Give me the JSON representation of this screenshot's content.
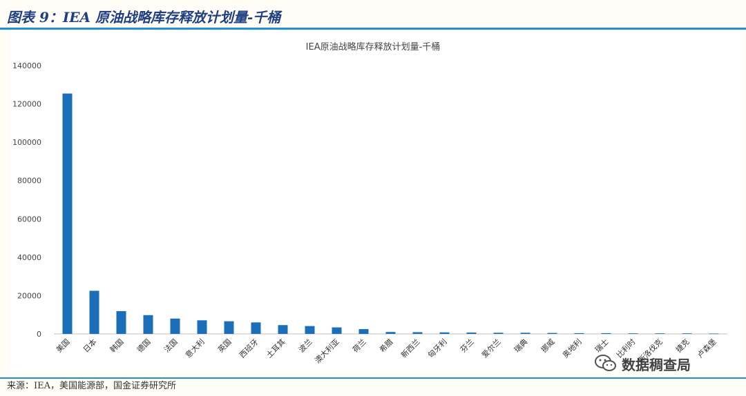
{
  "figure_title": "图表 9：IEA 原油战略库存释放计划量-千桶",
  "source_text": "来源：IEA，美国能源部，国金证券研究所",
  "watermark_text": "数据稠查局",
  "colors": {
    "bar": "#1a6fb8",
    "rule": "#1f8fcf",
    "title": "#1f3f82",
    "background": "#fffdf6"
  },
  "icons": {
    "watermark": "wechat-icon"
  },
  "chart_data": {
    "type": "bar",
    "title": "IEA原油战略库存释放计划量-千桶",
    "xlabel": "",
    "ylabel": "",
    "ylim": [
      0,
      140000
    ],
    "yticks": [
      "0",
      "20000",
      "40000",
      "60000",
      "80000",
      "100000",
      "120000",
      "140000"
    ],
    "grid": false,
    "legend": "none",
    "categories": [
      "美国",
      "日本",
      "韩国",
      "德国",
      "法国",
      "意大利",
      "英国",
      "西班牙",
      "土耳其",
      "波兰",
      "澳大利亚",
      "荷兰",
      "希腊",
      "新西兰",
      "匈牙利",
      "芬兰",
      "爱尔兰",
      "瑞典",
      "挪威",
      "奥地利",
      "瑞士",
      "比利时",
      "斯洛伐克",
      "捷克",
      "卢森堡"
    ],
    "values": [
      125400,
      22500,
      11900,
      9800,
      8000,
      7100,
      6600,
      6000,
      4600,
      4100,
      3400,
      2500,
      1000,
      900,
      800,
      700,
      600,
      600,
      500,
      400,
      400,
      300,
      300,
      300,
      200
    ]
  }
}
